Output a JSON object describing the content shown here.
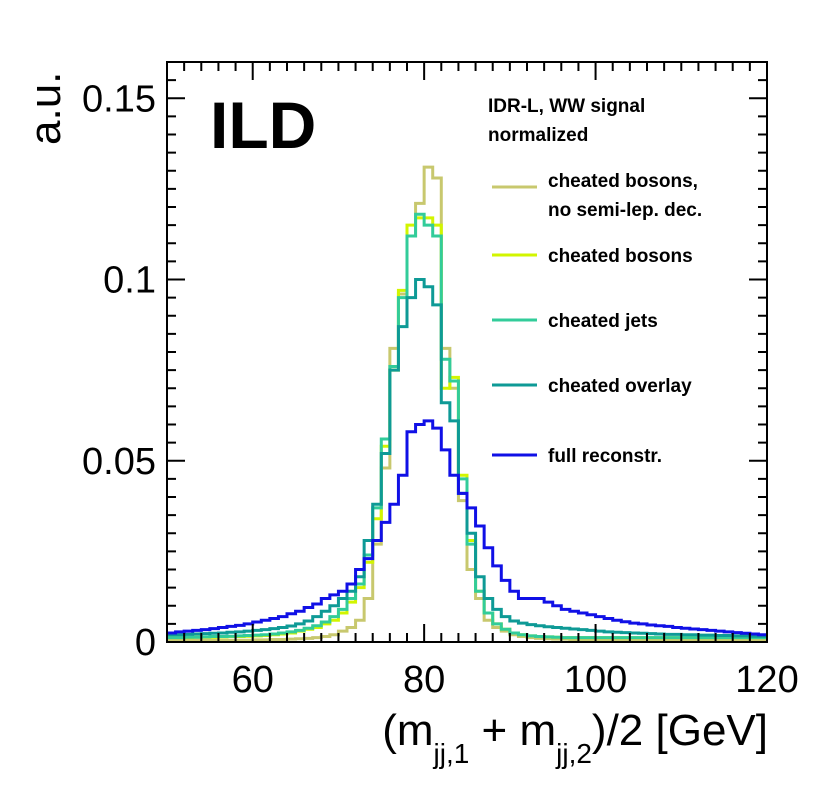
{
  "chart_data": {
    "type": "line",
    "style": "step-histogram",
    "logo": "ILD",
    "header": [
      "IDR-L, WW signal",
      "normalized"
    ],
    "ylabel": "a.u.",
    "xlabel": {
      "prefix": "(m",
      "sub1": "jj,1",
      "middle": " + m",
      "sub2": "jj,2",
      "suffix": ")/2 [GeV]"
    },
    "xlim": [
      50,
      120
    ],
    "ylim": [
      0,
      0.16
    ],
    "xticks": [
      60,
      80,
      100,
      120
    ],
    "xtick_labels": [
      "60",
      "80",
      "100",
      "120"
    ],
    "yticks": [
      0,
      0.05,
      0.1,
      0.15
    ],
    "ytick_labels": [
      "0",
      "0.05",
      "0.1",
      "0.15"
    ],
    "bin_width": 1,
    "bin_start": 50,
    "series": [
      {
        "name": "cheated bosons, no semi-lep. dec.",
        "label_lines": [
          "cheated bosons,",
          "no semi-lep. dec."
        ],
        "color": "#c8c86e",
        "values": [
          0.0005,
          0.0005,
          0.0005,
          0.0005,
          0.0005,
          0.0005,
          0.0005,
          0.0005,
          0.0005,
          0.0005,
          0.0006,
          0.0006,
          0.0007,
          0.0007,
          0.0008,
          0.0009,
          0.001,
          0.0012,
          0.0015,
          0.002,
          0.003,
          0.004,
          0.006,
          0.012,
          0.027,
          0.048,
          0.081,
          0.096,
          0.112,
          0.121,
          0.131,
          0.128,
          0.081,
          0.07,
          0.039,
          0.02,
          0.012,
          0.006,
          0.004,
          0.003,
          0.002,
          0.0015,
          0.0012,
          0.001,
          0.0009,
          0.0008,
          0.0008,
          0.0007,
          0.0007,
          0.0007,
          0.0007,
          0.0007,
          0.0007,
          0.0007,
          0.0007,
          0.0007,
          0.0007,
          0.0007,
          0.0007,
          0.0007,
          0.0007,
          0.0007,
          0.0007,
          0.0007,
          0.0007,
          0.0007,
          0.0007,
          0.0007,
          0.0007,
          0.0007
        ]
      },
      {
        "name": "cheated bosons",
        "label_lines": [
          "cheated bosons"
        ],
        "color": "#d2f500",
        "values": [
          0.0012,
          0.0012,
          0.0012,
          0.0013,
          0.0013,
          0.0013,
          0.0014,
          0.0015,
          0.0015,
          0.0016,
          0.0017,
          0.0018,
          0.002,
          0.0022,
          0.0025,
          0.003,
          0.0035,
          0.004,
          0.005,
          0.006,
          0.008,
          0.011,
          0.015,
          0.022,
          0.034,
          0.054,
          0.075,
          0.097,
          0.115,
          0.117,
          0.117,
          0.115,
          0.07,
          0.073,
          0.046,
          0.028,
          0.014,
          0.008,
          0.005,
          0.0035,
          0.0025,
          0.002,
          0.0017,
          0.0015,
          0.0014,
          0.0013,
          0.0012,
          0.0012,
          0.0012,
          0.0012,
          0.0012,
          0.0012,
          0.0012,
          0.0012,
          0.0012,
          0.0012,
          0.0012,
          0.0012,
          0.0012,
          0.0012,
          0.0012,
          0.0012,
          0.0012,
          0.0012,
          0.0012,
          0.0012,
          0.0012,
          0.0012,
          0.0012,
          0.0012
        ]
      },
      {
        "name": "cheated jets",
        "label_lines": [
          "cheated jets"
        ],
        "color": "#32cc9a",
        "values": [
          0.0012,
          0.0012,
          0.0013,
          0.0013,
          0.0014,
          0.0015,
          0.0015,
          0.0016,
          0.0017,
          0.0018,
          0.0019,
          0.002,
          0.0022,
          0.0025,
          0.0028,
          0.0032,
          0.0038,
          0.0045,
          0.0055,
          0.007,
          0.009,
          0.012,
          0.016,
          0.024,
          0.037,
          0.056,
          0.076,
          0.095,
          0.112,
          0.118,
          0.115,
          0.112,
          0.078,
          0.072,
          0.045,
          0.027,
          0.014,
          0.008,
          0.005,
          0.0035,
          0.0025,
          0.002,
          0.0017,
          0.0015,
          0.0014,
          0.0013,
          0.0012,
          0.0012,
          0.0012,
          0.0012,
          0.0012,
          0.0012,
          0.0012,
          0.0012,
          0.0012,
          0.0012,
          0.0012,
          0.0012,
          0.0012,
          0.0012,
          0.0012,
          0.0012,
          0.0012,
          0.0012,
          0.0012,
          0.0012,
          0.0012,
          0.0012,
          0.0012,
          0.0012
        ]
      },
      {
        "name": "cheated overlay",
        "label_lines": [
          "cheated overlay"
        ],
        "color": "#0e9a96",
        "values": [
          0.002,
          0.002,
          0.0021,
          0.0022,
          0.0023,
          0.0024,
          0.0025,
          0.0027,
          0.0028,
          0.003,
          0.0032,
          0.0034,
          0.0037,
          0.004,
          0.0044,
          0.005,
          0.0058,
          0.007,
          0.0085,
          0.01,
          0.012,
          0.014,
          0.018,
          0.028,
          0.038,
          0.052,
          0.075,
          0.087,
          0.095,
          0.1,
          0.098,
          0.093,
          0.066,
          0.061,
          0.041,
          0.03,
          0.018,
          0.012,
          0.009,
          0.007,
          0.0058,
          0.0052,
          0.0048,
          0.0045,
          0.0042,
          0.004,
          0.0038,
          0.0036,
          0.0034,
          0.0032,
          0.003,
          0.0028,
          0.0027,
          0.0026,
          0.0025,
          0.0024,
          0.0023,
          0.0022,
          0.0021,
          0.0021,
          0.002,
          0.002,
          0.0019,
          0.0019,
          0.0018,
          0.0018,
          0.0017,
          0.0017,
          0.0016,
          0.0016
        ]
      },
      {
        "name": "full reconstr.",
        "label_lines": [
          "full reconstr."
        ],
        "color": "#1010e6",
        "values": [
          0.0025,
          0.0028,
          0.003,
          0.0032,
          0.0034,
          0.0037,
          0.004,
          0.0043,
          0.0046,
          0.005,
          0.0055,
          0.006,
          0.0065,
          0.007,
          0.0078,
          0.0085,
          0.0095,
          0.0105,
          0.012,
          0.013,
          0.014,
          0.016,
          0.02,
          0.023,
          0.028,
          0.033,
          0.038,
          0.046,
          0.058,
          0.06,
          0.061,
          0.059,
          0.053,
          0.046,
          0.041,
          0.037,
          0.032,
          0.026,
          0.021,
          0.017,
          0.014,
          0.012,
          0.012,
          0.012,
          0.011,
          0.01,
          0.009,
          0.0085,
          0.008,
          0.0075,
          0.007,
          0.0065,
          0.006,
          0.0056,
          0.0052,
          0.005,
          0.0047,
          0.0045,
          0.0043,
          0.004,
          0.0038,
          0.0036,
          0.0034,
          0.0032,
          0.003,
          0.0028,
          0.0026,
          0.0024,
          0.0022,
          0.002
        ]
      }
    ]
  }
}
